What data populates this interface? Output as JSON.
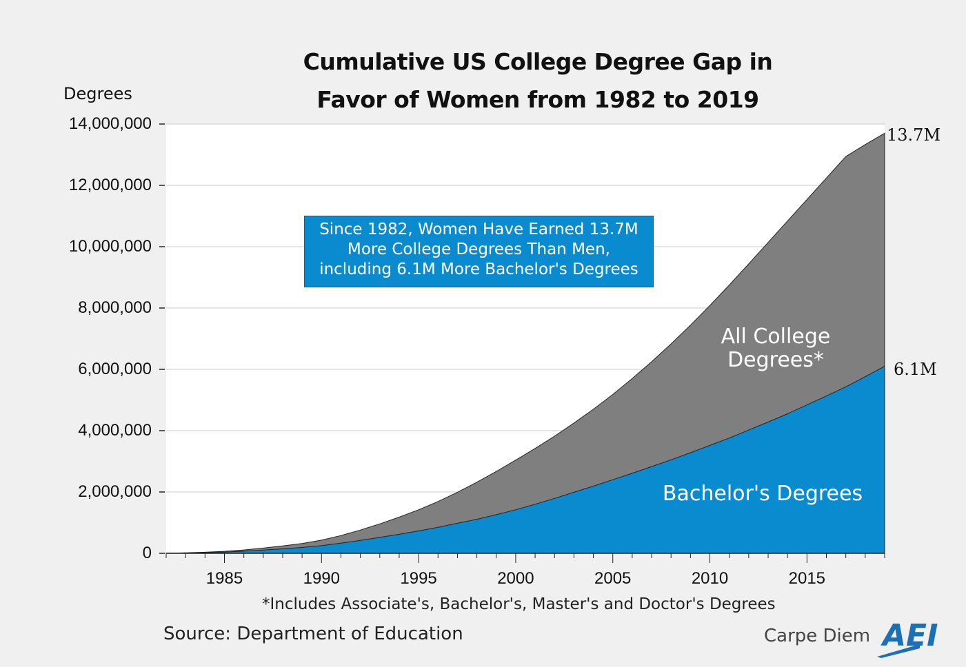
{
  "title_line1": "Cumulative US College Degree Gap in",
  "title_line2": "Favor of Women from 1982 to 2019",
  "ylabel": "Degrees",
  "callout": {
    "line1": "Since 1982, Women Have Earned 13.7M",
    "line2": "More College Degrees Than Men,",
    "line3": "including 6.1M More Bachelor's Degrees"
  },
  "series_labels": {
    "all_line1": "All College",
    "all_line2": "Degrees*",
    "bachelor": "Bachelor's Degrees"
  },
  "end_labels": {
    "all": "13.7M",
    "bachelor": "6.1M"
  },
  "footnote": "*Includes Associate's, Bachelor's, Master's and Doctor's Degrees",
  "source": "Source: Department of Education",
  "brand": "Carpe Diem",
  "logo_text": "AEI",
  "colors": {
    "all_degrees": "#7f7f7f",
    "bachelor": "#0a8bcf",
    "background": "#f0f0f0",
    "plot_bg": "#ffffff"
  },
  "chart_data": {
    "type": "area",
    "title": "Cumulative US College Degree Gap in Favor of Women from 1982 to 2019",
    "ylabel": "Degrees",
    "xlabel": "",
    "xlim": [
      1982,
      2019
    ],
    "ylim": [
      0,
      14000000
    ],
    "yticks": [
      0,
      2000000,
      4000000,
      6000000,
      8000000,
      10000000,
      12000000,
      14000000
    ],
    "yticklabels": [
      "0",
      "2,000,000",
      "4,000,000",
      "6,000,000",
      "8,000,000",
      "10,000,000",
      "12,000,000",
      "14,000,000"
    ],
    "xticks": [
      1985,
      1990,
      1995,
      2000,
      2005,
      2010,
      2015
    ],
    "grid": true,
    "x": [
      1982,
      1983,
      1984,
      1985,
      1986,
      1987,
      1988,
      1989,
      1990,
      1991,
      1992,
      1993,
      1994,
      1995,
      1996,
      1997,
      1998,
      1999,
      2000,
      2001,
      2002,
      2003,
      2004,
      2005,
      2006,
      2007,
      2008,
      2009,
      2010,
      2011,
      2012,
      2013,
      2014,
      2015,
      2016,
      2017,
      2018,
      2019
    ],
    "series": [
      {
        "name": "All College Degrees*",
        "values": [
          5000,
          15000,
          35000,
          65000,
          110000,
          170000,
          240000,
          320000,
          430000,
          580000,
          760000,
          960000,
          1180000,
          1420000,
          1690000,
          1990000,
          2320000,
          2670000,
          3040000,
          3420000,
          3820000,
          4250000,
          4700000,
          5180000,
          5700000,
          6250000,
          6830000,
          7440000,
          8080000,
          8750000,
          9440000,
          10140000,
          10840000,
          11540000,
          12240000,
          12940000,
          13330000,
          13700000
        ]
      },
      {
        "name": "Bachelor's Degrees",
        "values": [
          3000,
          10000,
          20000,
          40000,
          70000,
          105000,
          145000,
          190000,
          250000,
          330000,
          420000,
          520000,
          620000,
          730000,
          850000,
          980000,
          1110000,
          1260000,
          1420000,
          1600000,
          1790000,
          1990000,
          2190000,
          2400000,
          2610000,
          2830000,
          3050000,
          3280000,
          3520000,
          3760000,
          4020000,
          4280000,
          4550000,
          4840000,
          5130000,
          5430000,
          5760000,
          6100000
        ]
      }
    ]
  }
}
